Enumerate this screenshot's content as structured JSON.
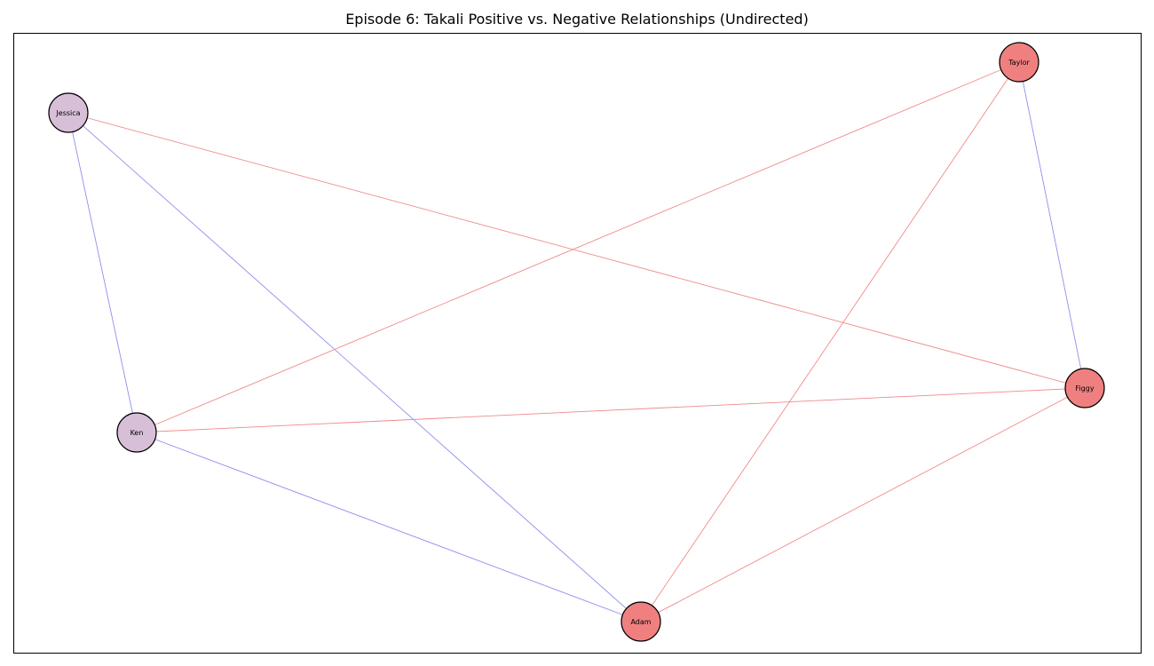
{
  "title": "Episode 6: Takali Positive vs. Negative Relationships (Undirected)",
  "colors": {
    "positive_edge": "#8f8ff0",
    "negative_edge": "#f08a8a",
    "node_group_a": "#d8bfd8",
    "node_group_b": "#f08080",
    "node_stroke": "#000000",
    "frame": "#000000"
  },
  "chart_data": {
    "type": "network",
    "title": "Episode 6: Takali Positive vs. Negative Relationships (Undirected)",
    "directed": false,
    "nodes": [
      {
        "id": "Taylor",
        "label": "Taylor",
        "color": "#f08080"
      },
      {
        "id": "Jessica",
        "label": "Jessica",
        "color": "#d8bfd8"
      },
      {
        "id": "Figgy",
        "label": "Figgy",
        "color": "#f08080"
      },
      {
        "id": "Ken",
        "label": "Ken",
        "color": "#d8bfd8"
      },
      {
        "id": "Adam",
        "label": "Adam",
        "color": "#f08080"
      }
    ],
    "edges": [
      {
        "source": "Jessica",
        "target": "Ken",
        "sign": "positive"
      },
      {
        "source": "Jessica",
        "target": "Adam",
        "sign": "positive"
      },
      {
        "source": "Jessica",
        "target": "Figgy",
        "sign": "negative"
      },
      {
        "source": "Ken",
        "target": "Adam",
        "sign": "positive"
      },
      {
        "source": "Ken",
        "target": "Taylor",
        "sign": "negative"
      },
      {
        "source": "Ken",
        "target": "Figgy",
        "sign": "negative"
      },
      {
        "source": "Taylor",
        "target": "Figgy",
        "sign": "positive"
      },
      {
        "source": "Taylor",
        "target": "Adam",
        "sign": "negative"
      },
      {
        "source": "Adam",
        "target": "Figgy",
        "sign": "negative"
      }
    ]
  }
}
